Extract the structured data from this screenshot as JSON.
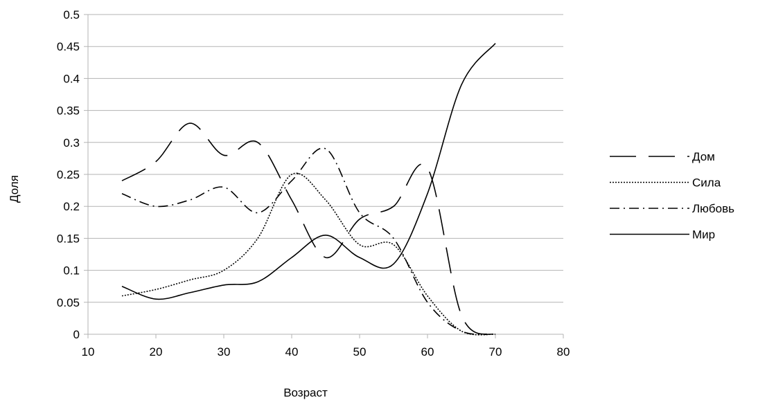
{
  "chart_data": {
    "type": "line",
    "title": "",
    "xlabel": "Возраст",
    "ylabel": "Доля",
    "xlim": [
      10,
      80
    ],
    "ylim": [
      0,
      0.5
    ],
    "x_ticks": [
      "10",
      "20",
      "30",
      "40",
      "50",
      "60",
      "70",
      "80"
    ],
    "y_ticks": [
      "0",
      "0.05",
      "0.1",
      "0.15",
      "0.2",
      "0.25",
      "0.3",
      "0.35",
      "0.4",
      "0.45",
      "0.5"
    ],
    "grid": true,
    "legend_position": "right",
    "x": [
      15,
      20,
      25,
      30,
      35,
      40,
      45,
      50,
      55,
      60,
      65,
      70
    ],
    "series": [
      {
        "name": "Дом",
        "dash": "long-dash",
        "values": [
          0.24,
          0.27,
          0.33,
          0.28,
          0.3,
          0.21,
          0.12,
          0.18,
          0.2,
          0.26,
          0.03,
          0.0
        ]
      },
      {
        "name": "Сила",
        "dash": "dotted",
        "values": [
          0.06,
          0.07,
          0.085,
          0.1,
          0.15,
          0.25,
          0.21,
          0.14,
          0.14,
          0.06,
          0.005,
          0.0
        ]
      },
      {
        "name": "Любовь",
        "dash": "dash-dot",
        "values": [
          0.22,
          0.2,
          0.21,
          0.23,
          0.19,
          0.24,
          0.29,
          0.19,
          0.15,
          0.05,
          0.005,
          0.0
        ]
      },
      {
        "name": "Мир",
        "dash": "solid",
        "values": [
          0.075,
          0.055,
          0.065,
          0.077,
          0.082,
          0.12,
          0.155,
          0.12,
          0.11,
          0.22,
          0.39,
          0.455
        ]
      }
    ]
  }
}
